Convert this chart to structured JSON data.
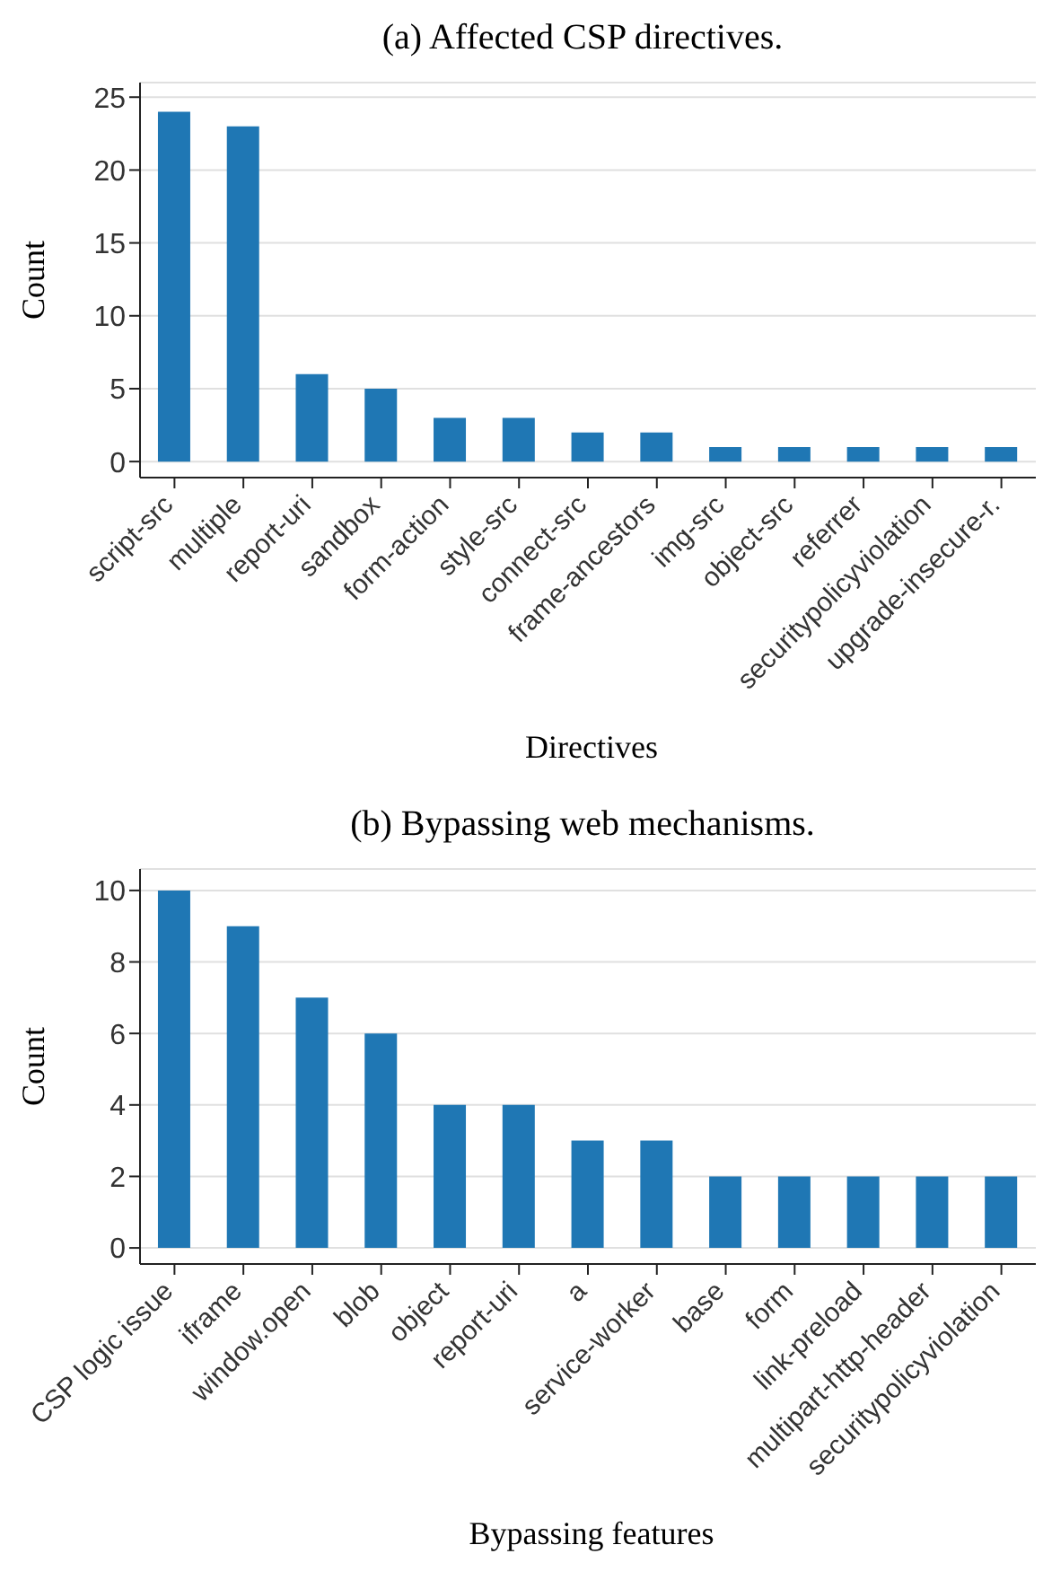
{
  "chart_data": [
    {
      "type": "bar",
      "title": "(a) Affected CSP directives.",
      "xlabel": "Directives",
      "ylabel": "Count",
      "categories": [
        "script-src",
        "multiple",
        "report-uri",
        "sandbox",
        "form-action",
        "style-src",
        "connect-src",
        "frame-ancestors",
        "img-src",
        "object-src",
        "referrer",
        "securitypolicyviolation",
        "upgrade-insecure-r."
      ],
      "values": [
        24,
        23,
        6,
        5,
        3,
        3,
        2,
        2,
        1,
        1,
        1,
        1,
        1
      ],
      "color": "#1f77b4",
      "ylim": [
        -1.1,
        26
      ],
      "yticks": [
        0,
        5,
        10,
        15,
        20,
        25
      ],
      "grid": "y",
      "legend": false
    },
    {
      "type": "bar",
      "title": "(b) Bypassing web mechanisms.",
      "xlabel": "Bypassing features",
      "ylabel": "Count",
      "categories": [
        "CSP logic issue",
        "iframe",
        "window.open",
        "blob",
        "object",
        "report-uri",
        "a",
        "service-worker",
        "base",
        "form",
        "link-preload",
        "multipart-http-header",
        "securitypolicyviolation"
      ],
      "values": [
        10,
        9,
        7,
        6,
        4,
        4,
        3,
        3,
        2,
        2,
        2,
        2,
        2
      ],
      "color": "#1f77b4",
      "ylim": [
        -0.45,
        10.6
      ],
      "yticks": [
        0,
        2,
        4,
        6,
        8,
        10
      ],
      "grid": "y",
      "legend": false
    }
  ]
}
